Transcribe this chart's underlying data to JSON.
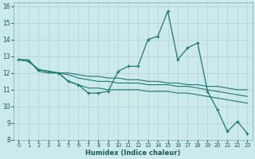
{
  "xlabel": "Humidex (Indice chaleur)",
  "background_color": "#cce9ec",
  "grid_color": "#b8d8dc",
  "line_color": "#1a7a6e",
  "xlim": [
    -0.5,
    23.5
  ],
  "ylim": [
    8,
    16.2
  ],
  "yticks": [
    8,
    9,
    10,
    11,
    12,
    13,
    14,
    15,
    16
  ],
  "xticks": [
    0,
    1,
    2,
    3,
    4,
    5,
    6,
    7,
    8,
    9,
    10,
    11,
    12,
    13,
    14,
    15,
    16,
    17,
    18,
    19,
    20,
    21,
    22,
    23
  ],
  "series_main": [
    12.8,
    12.7,
    12.2,
    12.1,
    12.0,
    11.5,
    11.3,
    10.8,
    10.8,
    10.9,
    12.1,
    12.4,
    12.4,
    14.0,
    14.2,
    15.7,
    12.8,
    13.5,
    13.8,
    10.9,
    9.8,
    8.5,
    9.1,
    8.4
  ],
  "series_line1": [
    12.8,
    12.8,
    12.1,
    12.0,
    12.0,
    11.5,
    11.3,
    11.1,
    11.1,
    11.0,
    11.0,
    11.0,
    11.0,
    10.9,
    10.9,
    10.9,
    10.8,
    10.8,
    10.7,
    10.6,
    10.5,
    10.4,
    10.3,
    10.2
  ],
  "series_line2": [
    12.8,
    12.7,
    12.2,
    12.1,
    12.0,
    11.9,
    11.7,
    11.6,
    11.5,
    11.5,
    11.4,
    11.4,
    11.4,
    11.3,
    11.3,
    11.3,
    11.2,
    11.2,
    11.1,
    11.0,
    10.9,
    10.8,
    10.7,
    10.6
  ],
  "series_line3": [
    12.8,
    12.7,
    12.2,
    12.1,
    12.0,
    12.0,
    11.9,
    11.8,
    11.8,
    11.7,
    11.7,
    11.6,
    11.6,
    11.5,
    11.5,
    11.4,
    11.4,
    11.3,
    11.3,
    11.2,
    11.2,
    11.1,
    11.0,
    11.0
  ]
}
